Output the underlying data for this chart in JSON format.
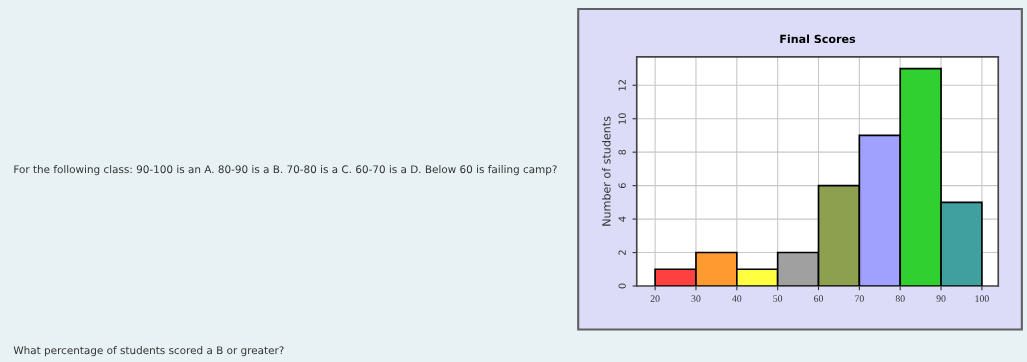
{
  "chart_data": {
    "type": "histogram",
    "title": "Final Scores",
    "ylabel": "Number of students",
    "bins": [
      20,
      30,
      40,
      50,
      60,
      70,
      80,
      90,
      100
    ],
    "values": [
      1,
      2,
      1,
      2,
      6,
      9,
      13,
      5
    ],
    "colors": [
      "#ff4040",
      "#ff9a30",
      "#ffff40",
      "#a0a0a0",
      "#8ca050",
      "#a0a0ff",
      "#30d030",
      "#40a0a0"
    ],
    "xlim": [
      15.5,
      104
    ],
    "xticks": [
      20,
      30,
      40,
      50,
      60,
      70,
      80,
      90,
      100
    ],
    "ylim": [
      0,
      13.7
    ],
    "yticks": [
      0,
      2,
      4,
      6,
      8,
      10,
      12
    ],
    "grid": true,
    "annotations": [
      "For the following class: 90-100 is an A. 80-90 is a B. 70-80 is a C. 60-70 is a D. Below 60 is failing camp?",
      "What percentage of students scored a B or greater?"
    ]
  }
}
